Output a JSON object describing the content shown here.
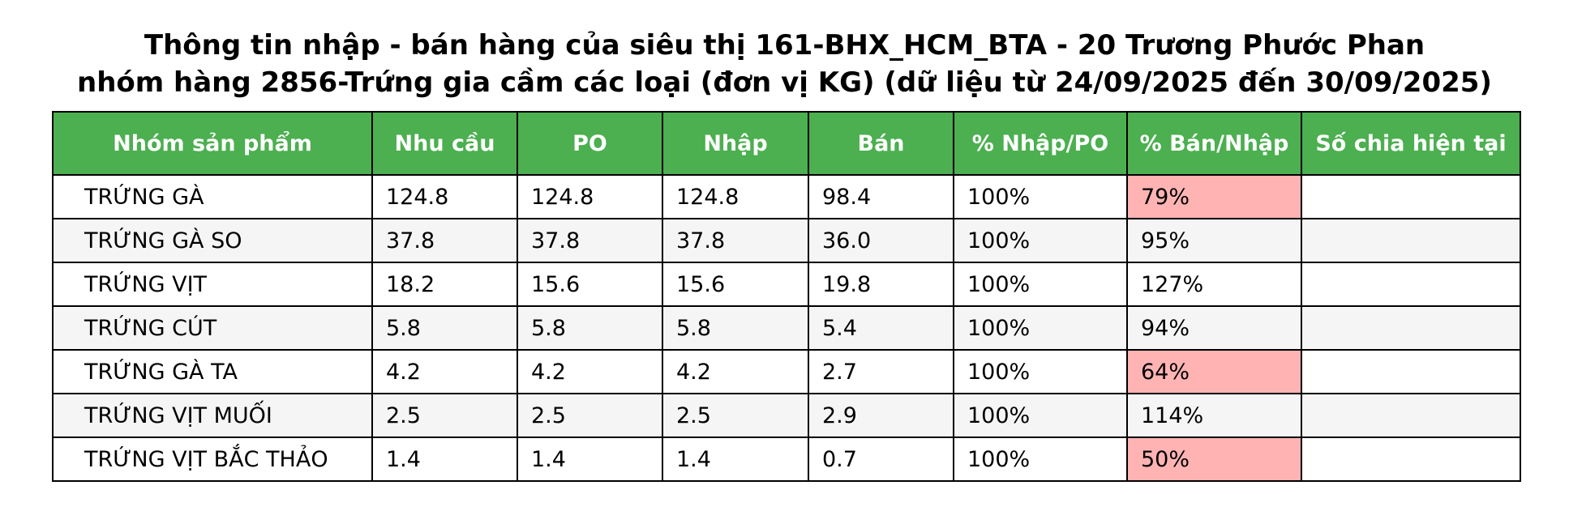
{
  "title_lines": [
    "Thông tin nhập - bán hàng của siêu thị 161-BHX_HCM_BTA - 20 Trương Phước Phan",
    "nhóm hàng 2856-Trứng gia cầm các loại (đơn vị KG) (dữ liệu từ 24/09/2025 đến 30/09/2025)"
  ],
  "colors": {
    "header_bg": "#4caf50",
    "header_text": "#ffffff",
    "highlight_low": "#ffb3b3",
    "row_alt": "#f5f5f5"
  },
  "chart_data": {
    "type": "table",
    "columns": [
      "Nhóm sản phẩm",
      "Nhu cầu",
      "PO",
      "Nhập",
      "Bán",
      "% Nhập/PO",
      "% Bán/Nhập",
      "Số chia hiện tại"
    ],
    "rows": [
      {
        "name": "TRỨNG GÀ",
        "nhu_cau": "124.8",
        "po": "124.8",
        "nhap": "124.8",
        "ban": "98.4",
        "nhap_po": "100%",
        "ban_nhap": "79%",
        "so_chia": "",
        "highlight": true
      },
      {
        "name": "TRỨNG GÀ SO",
        "nhu_cau": "37.8",
        "po": "37.8",
        "nhap": "37.8",
        "ban": "36.0",
        "nhap_po": "100%",
        "ban_nhap": "95%",
        "so_chia": "",
        "highlight": false
      },
      {
        "name": "TRỨNG VỊT",
        "nhu_cau": "18.2",
        "po": "15.6",
        "nhap": "15.6",
        "ban": "19.8",
        "nhap_po": "100%",
        "ban_nhap": "127%",
        "so_chia": "",
        "highlight": false
      },
      {
        "name": "TRỨNG CÚT",
        "nhu_cau": "5.8",
        "po": "5.8",
        "nhap": "5.8",
        "ban": "5.4",
        "nhap_po": "100%",
        "ban_nhap": "94%",
        "so_chia": "",
        "highlight": false
      },
      {
        "name": "TRỨNG GÀ TA",
        "nhu_cau": "4.2",
        "po": "4.2",
        "nhap": "4.2",
        "ban": "2.7",
        "nhap_po": "100%",
        "ban_nhap": "64%",
        "so_chia": "",
        "highlight": true
      },
      {
        "name": "TRỨNG VỊT MUỐI",
        "nhu_cau": "2.5",
        "po": "2.5",
        "nhap": "2.5",
        "ban": "2.9",
        "nhap_po": "100%",
        "ban_nhap": "114%",
        "so_chia": "",
        "highlight": false
      },
      {
        "name": "TRỨNG VỊT BẮC THẢO",
        "nhu_cau": "1.4",
        "po": "1.4",
        "nhap": "1.4",
        "ban": "0.7",
        "nhap_po": "100%",
        "ban_nhap": "50%",
        "so_chia": "",
        "highlight": true
      }
    ]
  }
}
